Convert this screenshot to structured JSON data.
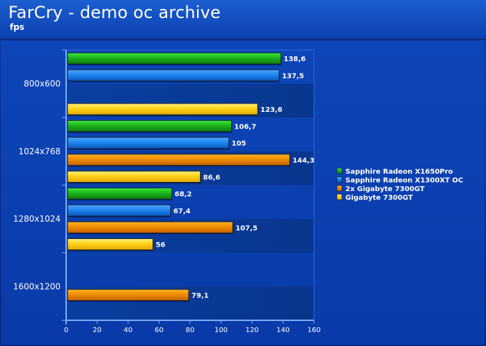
{
  "header": {
    "title": "FarCry - demo oc archive",
    "subtitle": "fps"
  },
  "colors": {
    "Sapphire Radeon X1650Pro": "#22cc22",
    "Sapphire Radeon X1300XT OC": "#1f86ee",
    "2x Gigabyte 7300GT": "#f2a000",
    "Gigabyte 7300GT": "#ffd21a"
  },
  "chart_data": {
    "type": "bar",
    "orientation": "horizontal",
    "title": "FarCry - demo oc archive",
    "xlabel": "",
    "ylabel": "fps",
    "xlim": [
      0,
      160
    ],
    "xticks": [
      0,
      20,
      40,
      60,
      80,
      100,
      120,
      140,
      160
    ],
    "categories": [
      "800x600",
      "1024x768",
      "1280x1024",
      "1600x1200"
    ],
    "series": [
      {
        "name": "Sapphire Radeon X1650Pro",
        "values": [
          138.6,
          106.7,
          68.2,
          null
        ],
        "labels": [
          "138,6",
          "106,7",
          "68,2",
          ""
        ]
      },
      {
        "name": "Sapphire Radeon X1300XT OC",
        "values": [
          137.5,
          105,
          67.4,
          null
        ],
        "labels": [
          "137,5",
          "105",
          "67,4",
          ""
        ]
      },
      {
        "name": "2x Gigabyte 7300GT",
        "values": [
          null,
          144.3,
          107.5,
          79.1
        ],
        "labels": [
          "",
          "144,3",
          "107,5",
          "79,1"
        ]
      },
      {
        "name": "Gigabyte 7300GT",
        "values": [
          123.6,
          86.6,
          56,
          null
        ],
        "labels": [
          "123,6",
          "86,6",
          "56",
          ""
        ]
      }
    ],
    "legend_position": "right",
    "grid": false
  }
}
